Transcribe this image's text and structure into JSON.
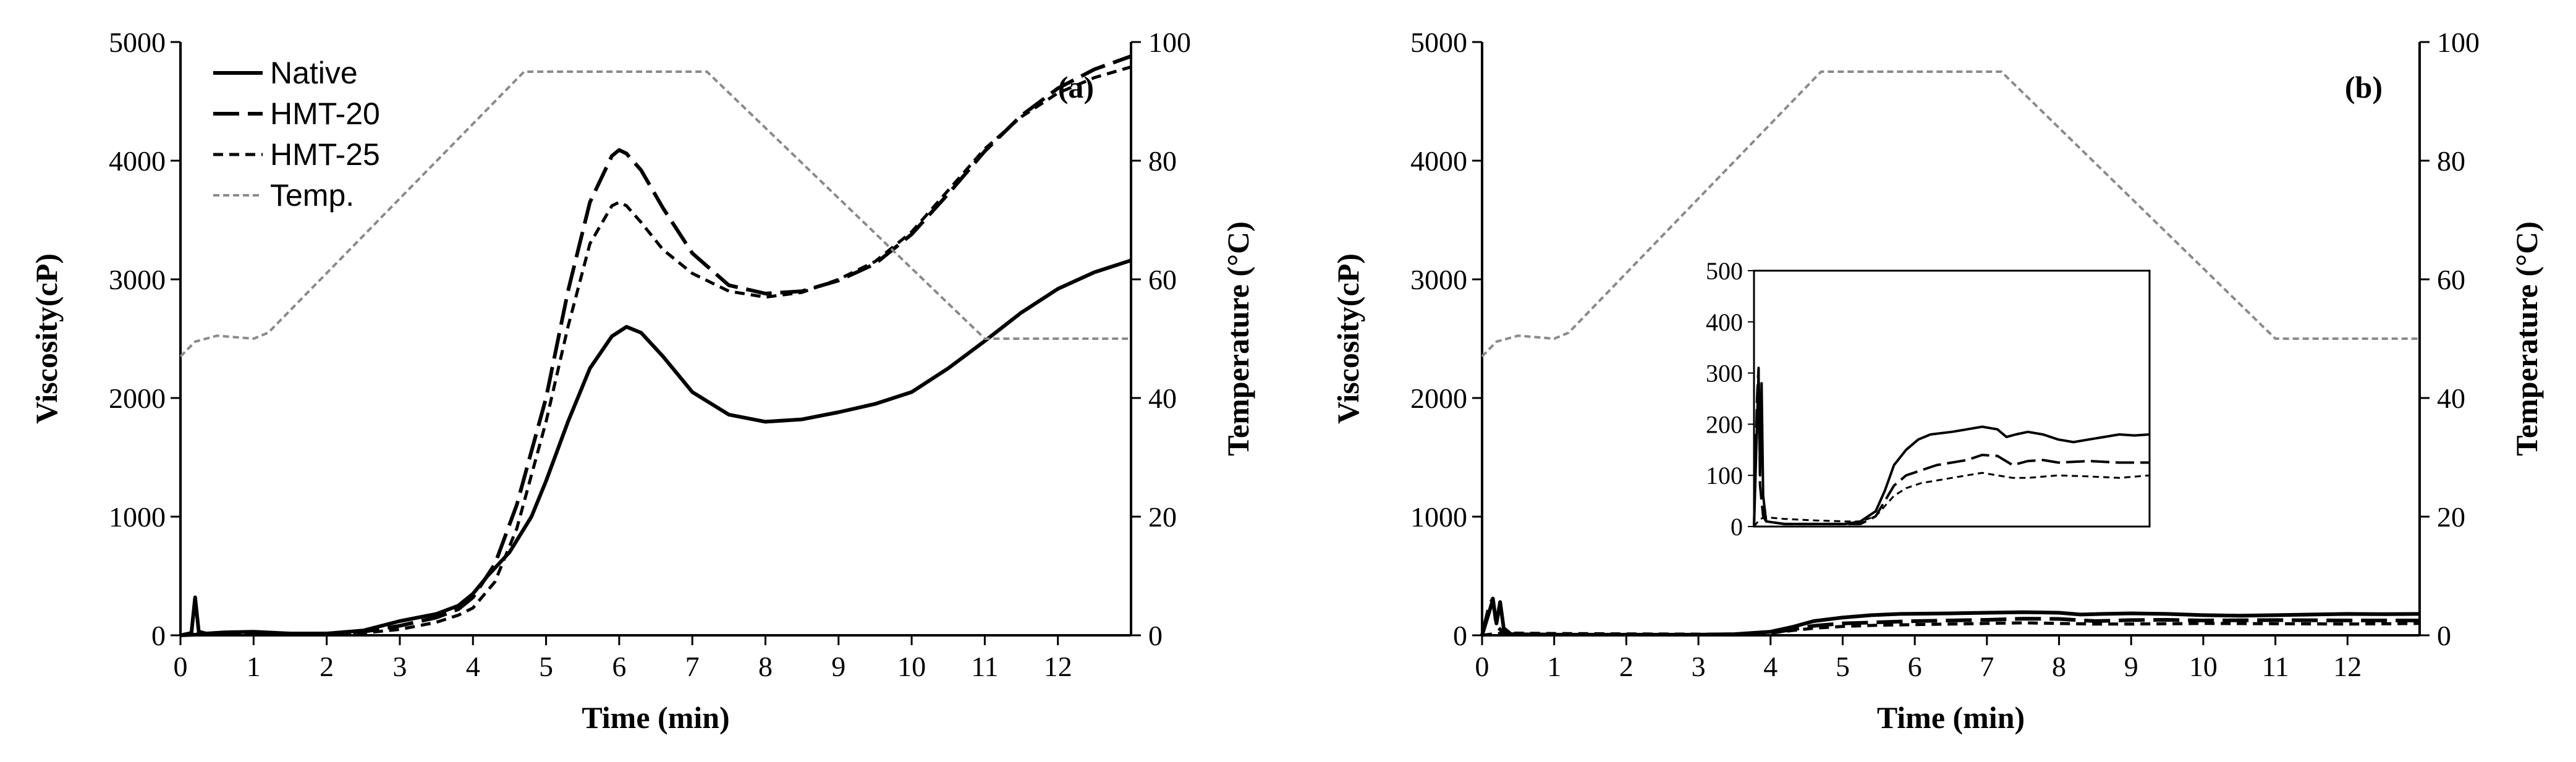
{
  "chart_data": [
    {
      "type": "line",
      "panel_label": "(a)",
      "xlabel": "Time (min)",
      "ylabel": "Viscosity(cP)",
      "y2label": "Temperature (°C)",
      "xlim": [
        0,
        13
      ],
      "ylim": [
        0,
        5000
      ],
      "y2lim": [
        0,
        100
      ],
      "xticks": [
        0,
        1,
        2,
        3,
        4,
        5,
        6,
        7,
        8,
        9,
        10,
        11,
        12
      ],
      "yticks": [
        0,
        1000,
        2000,
        3000,
        4000,
        5000
      ],
      "y2ticks": [
        0,
        20,
        40,
        60,
        80,
        100
      ],
      "legend": [
        "Native",
        "HMT-20",
        "HMT-25",
        "Temp."
      ],
      "legend_position": "top-left",
      "series": [
        {
          "name": "Native",
          "style": "solid",
          "axis": "left",
          "x": [
            0,
            0.15,
            0.2,
            0.25,
            0.35,
            0.6,
            1,
            1.5,
            2,
            2.5,
            3,
            3.5,
            3.8,
            4,
            4.2,
            4.5,
            4.8,
            5,
            5.3,
            5.6,
            5.9,
            6.1,
            6.3,
            6.6,
            7,
            7.5,
            8,
            8.5,
            9,
            9.5,
            10,
            10.5,
            11,
            11.5,
            12,
            12.5,
            13
          ],
          "y": [
            0,
            20,
            320,
            30,
            15,
            25,
            30,
            15,
            15,
            40,
            120,
            180,
            250,
            350,
            500,
            700,
            1000,
            1300,
            1800,
            2250,
            2520,
            2600,
            2550,
            2350,
            2050,
            1860,
            1800,
            1820,
            1880,
            1950,
            2050,
            2250,
            2480,
            2720,
            2920,
            3060,
            3160
          ]
        },
        {
          "name": "HMT-20",
          "style": "long-dash",
          "axis": "left",
          "x": [
            0,
            0.2,
            0.4,
            1,
            1.5,
            2,
            2.5,
            3,
            3.5,
            3.8,
            4,
            4.3,
            4.6,
            5,
            5.3,
            5.6,
            5.9,
            6,
            6.1,
            6.3,
            6.6,
            7,
            7.5,
            8,
            8.5,
            9,
            9.5,
            10,
            10.5,
            11,
            11.5,
            12,
            12.5,
            13
          ],
          "y": [
            0,
            5,
            10,
            15,
            10,
            15,
            30,
            80,
            150,
            220,
            320,
            600,
            1100,
            2000,
            2900,
            3650,
            4040,
            4090,
            4060,
            3920,
            3600,
            3220,
            2950,
            2880,
            2900,
            2990,
            3130,
            3380,
            3720,
            4080,
            4380,
            4610,
            4770,
            4880
          ]
        },
        {
          "name": "HMT-25",
          "style": "dash",
          "axis": "left",
          "x": [
            0,
            0.3,
            0.6,
            1,
            1.5,
            2,
            2.5,
            3,
            3.5,
            3.8,
            4,
            4.3,
            4.6,
            5,
            5.3,
            5.6,
            5.9,
            6,
            6.1,
            6.3,
            6.6,
            7,
            7.5,
            8,
            8.5,
            9,
            9.5,
            10,
            10.5,
            11,
            11.5,
            12,
            12.5,
            13
          ],
          "y": [
            0,
            15,
            20,
            15,
            10,
            10,
            20,
            50,
            110,
            170,
            230,
            450,
            900,
            1800,
            2600,
            3300,
            3620,
            3650,
            3620,
            3480,
            3250,
            3050,
            2900,
            2850,
            2890,
            3000,
            3150,
            3400,
            3750,
            4100,
            4370,
            4570,
            4700,
            4790
          ]
        },
        {
          "name": "Temp.",
          "style": "gray-dotted",
          "axis": "right",
          "x": [
            0,
            0.2,
            0.5,
            1,
            1.2,
            4.7,
            5,
            7.2,
            11,
            13
          ],
          "y": [
            47,
            49.5,
            50.5,
            50,
            51,
            95,
            95,
            95,
            50,
            50
          ]
        }
      ]
    },
    {
      "type": "line",
      "panel_label": "(b)",
      "xlabel": "Time (min)",
      "ylabel": "Viscosity(cP)",
      "y2label": "Temperature (°C)",
      "xlim": [
        0,
        13
      ],
      "ylim": [
        0,
        5000
      ],
      "y2lim": [
        0,
        100
      ],
      "xticks": [
        0,
        1,
        2,
        3,
        4,
        5,
        6,
        7,
        8,
        9,
        10,
        11,
        12
      ],
      "yticks": [
        0,
        1000,
        2000,
        3000,
        4000,
        5000
      ],
      "y2ticks": [
        0,
        20,
        40,
        60,
        80,
        100
      ],
      "series": [
        {
          "name": "Native",
          "style": "solid",
          "axis": "left",
          "x": [
            0,
            0.1,
            0.15,
            0.2,
            0.25,
            0.3,
            0.4,
            1,
            2,
            3,
            3.5,
            4,
            4.3,
            4.6,
            5,
            5.4,
            5.8,
            6.5,
            7,
            7.5,
            8,
            8.3,
            8.6,
            9,
            9.5,
            10,
            10.5,
            11,
            11.5,
            12,
            12.5,
            13
          ],
          "y": [
            0,
            200,
            300,
            100,
            280,
            60,
            10,
            5,
            5,
            5,
            10,
            30,
            70,
            120,
            150,
            170,
            180,
            185,
            190,
            195,
            190,
            175,
            180,
            185,
            180,
            170,
            165,
            170,
            175,
            180,
            178,
            180
          ]
        },
        {
          "name": "HMT-20",
          "style": "long-dash",
          "axis": "left",
          "x": [
            0,
            0.1,
            0.15,
            0.2,
            0.3,
            0.4,
            1,
            2,
            3,
            3.5,
            4,
            4.3,
            4.6,
            5,
            5.5,
            6,
            6.5,
            7,
            7.5,
            8,
            8.5,
            9,
            9.5,
            10,
            11,
            12,
            13
          ],
          "y": [
            0,
            250,
            310,
            80,
            20,
            10,
            5,
            5,
            5,
            5,
            20,
            50,
            80,
            100,
            110,
            120,
            125,
            130,
            140,
            138,
            120,
            128,
            130,
            125,
            128,
            125,
            125
          ]
        },
        {
          "name": "HMT-25",
          "style": "dash",
          "axis": "left",
          "x": [
            0,
            0.2,
            0.4,
            1,
            2,
            3,
            3.5,
            4,
            4.3,
            4.6,
            5,
            5.5,
            6,
            6.5,
            7,
            7.5,
            8,
            8.5,
            9,
            10,
            11,
            12,
            13
          ],
          "y": [
            0,
            15,
            18,
            15,
            12,
            10,
            10,
            20,
            40,
            60,
            75,
            85,
            90,
            95,
            100,
            105,
            100,
            95,
            95,
            100,
            98,
            95,
            100
          ]
        },
        {
          "name": "Temp.",
          "style": "gray-dotted",
          "axis": "right",
          "x": [
            0,
            0.2,
            0.5,
            1,
            1.2,
            4.7,
            5,
            7.2,
            11,
            13
          ],
          "y": [
            47,
            49.5,
            50.5,
            50,
            51,
            95,
            95,
            95,
            50,
            50
          ]
        }
      ],
      "inset": {
        "xlim": [
          0,
          13
        ],
        "ylim": [
          0,
          500
        ],
        "yticks": [
          0,
          100,
          200,
          300,
          400,
          500
        ],
        "series": [
          "Native",
          "HMT-20",
          "HMT-25"
        ]
      }
    }
  ]
}
